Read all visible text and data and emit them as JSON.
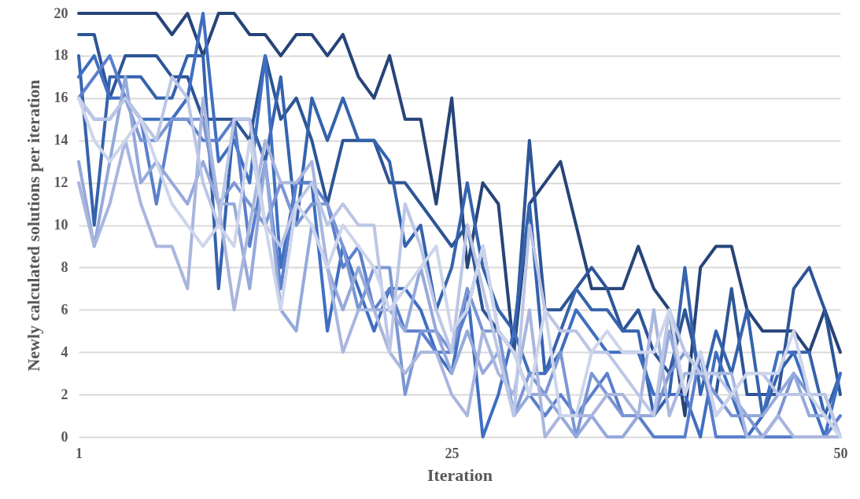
{
  "chart_data": {
    "type": "line",
    "xlabel": "Iteration",
    "ylabel": "Newly calculated solutions per iteration",
    "x": [
      1,
      2,
      3,
      4,
      5,
      6,
      7,
      8,
      9,
      10,
      11,
      12,
      13,
      14,
      15,
      16,
      17,
      18,
      19,
      20,
      21,
      22,
      23,
      24,
      25,
      26,
      27,
      28,
      29,
      30,
      31,
      32,
      33,
      34,
      35,
      36,
      37,
      38,
      39,
      40,
      41,
      42,
      43,
      44,
      45,
      46,
      47,
      48,
      49,
      50
    ],
    "xlim": [
      1,
      50
    ],
    "xticks": [
      1,
      25,
      50
    ],
    "ylim": [
      0,
      20
    ],
    "yticks": [
      0,
      2,
      4,
      6,
      8,
      10,
      12,
      14,
      16,
      18,
      20
    ],
    "grid": "y",
    "series": [
      {
        "color": "#264478",
        "values": [
          20,
          20,
          20,
          20,
          20,
          20,
          19,
          20,
          18,
          20,
          20,
          19,
          19,
          18,
          19,
          19,
          18,
          19,
          17,
          16,
          18,
          15,
          15,
          11,
          16,
          8,
          12,
          11,
          4,
          11,
          12,
          13,
          10,
          7,
          7,
          7,
          9,
          7,
          6,
          1,
          8,
          9,
          9,
          6,
          5,
          5,
          5,
          4,
          6,
          4
        ]
      },
      {
        "color": "#2d5596",
        "values": [
          19,
          19,
          16,
          18,
          18,
          18,
          17,
          17,
          15,
          15,
          15,
          14,
          18,
          15,
          16,
          14,
          11,
          14,
          14,
          14,
          12,
          12,
          11,
          10,
          9,
          10,
          6,
          5,
          4,
          14,
          6,
          6,
          7,
          8,
          7,
          5,
          6,
          4,
          3,
          6,
          3,
          2,
          7,
          2,
          2,
          2,
          7,
          8,
          6,
          2
        ]
      },
      {
        "color": "#3563ad",
        "values": [
          18,
          10,
          17,
          17,
          17,
          16,
          16,
          18,
          18,
          7,
          15,
          15,
          13,
          17,
          10,
          16,
          14,
          16,
          14,
          14,
          13,
          9,
          10,
          6,
          8,
          12,
          8,
          6,
          5,
          11,
          3,
          5,
          7,
          6,
          6,
          5,
          5,
          1,
          2,
          8,
          2,
          5,
          3,
          6,
          1,
          3,
          4,
          4,
          1,
          3
        ]
      },
      {
        "color": "#3f6fc1",
        "values": [
          17,
          18,
          16,
          16,
          15,
          15,
          15,
          16,
          20,
          13,
          14,
          12,
          18,
          8,
          12,
          12,
          5,
          9,
          7,
          5,
          7,
          7,
          6,
          4,
          3,
          7,
          0,
          2,
          5,
          3,
          3,
          4,
          6,
          5,
          4,
          4,
          4,
          2,
          2,
          2,
          0,
          4,
          2,
          0,
          1,
          4,
          4,
          2,
          0,
          3
        ]
      },
      {
        "color": "#5b7fcc",
        "values": [
          16,
          17,
          18,
          16,
          15,
          11,
          15,
          15,
          14,
          14,
          15,
          9,
          13,
          7,
          12,
          12,
          11,
          8,
          9,
          6,
          7,
          5,
          5,
          4,
          4,
          6,
          9,
          5,
          4,
          2,
          1,
          2,
          1,
          2,
          3,
          1,
          1,
          0,
          0,
          0,
          4,
          0,
          0,
          0,
          0,
          0,
          0,
          0,
          0,
          1
        ]
      },
      {
        "color": "#7b96d3",
        "values": [
          16,
          15,
          15,
          16,
          14,
          14,
          15,
          15,
          15,
          11,
          12,
          11,
          10,
          12,
          10,
          11,
          11,
          9,
          6,
          8,
          8,
          2,
          5,
          5,
          4,
          7,
          5,
          5,
          1,
          3,
          2,
          4,
          0,
          3,
          2,
          1,
          1,
          1,
          3,
          4,
          3,
          2,
          1,
          1,
          0,
          1,
          3,
          2,
          2,
          0
        ]
      },
      {
        "color": "#95a9db",
        "values": [
          13,
          9,
          13,
          17,
          12,
          13,
          12,
          11,
          13,
          11,
          11,
          7,
          13,
          6,
          5,
          10,
          8,
          6,
          8,
          6,
          6,
          5,
          8,
          5,
          3,
          5,
          3,
          4,
          1,
          2,
          2,
          1,
          0,
          1,
          0,
          0,
          1,
          1,
          5,
          2,
          4,
          1,
          2,
          1,
          1,
          2,
          3,
          1,
          1,
          0
        ]
      },
      {
        "color": "#a9b6de",
        "values": [
          12,
          9,
          11,
          14,
          11,
          9,
          9,
          7,
          16,
          11,
          6,
          10,
          14,
          12,
          12,
          13,
          8,
          4,
          6,
          6,
          4,
          3,
          4,
          4,
          2,
          1,
          5,
          3,
          2,
          6,
          0,
          1,
          1,
          1,
          2,
          2,
          1,
          6,
          1,
          3,
          3,
          3,
          3,
          0,
          0,
          1,
          0,
          0,
          0,
          0
        ]
      },
      {
        "color": "#bcc6e6",
        "values": [
          16,
          15,
          15,
          16,
          15,
          14,
          17,
          16,
          12,
          10,
          15,
          15,
          10,
          9,
          11,
          12,
          10,
          11,
          10,
          10,
          4,
          11,
          9,
          6,
          4,
          10,
          7,
          4,
          1,
          10,
          6,
          5,
          5,
          4,
          4,
          3,
          2,
          1,
          6,
          4,
          3,
          3,
          2,
          3,
          3,
          2,
          2,
          2,
          2,
          0
        ]
      },
      {
        "color": "#cdd5ec",
        "values": [
          16,
          14,
          13,
          14,
          15,
          13,
          11,
          10,
          9,
          10,
          9,
          14,
          10,
          6,
          11,
          10,
          8,
          10,
          9,
          8,
          6,
          7,
          8,
          9,
          5,
          6,
          9,
          5,
          4,
          2,
          6,
          1,
          1,
          4,
          5,
          4,
          4,
          4,
          6,
          2,
          4,
          1,
          2,
          3,
          3,
          3,
          5,
          2,
          1,
          0
        ]
      }
    ]
  }
}
